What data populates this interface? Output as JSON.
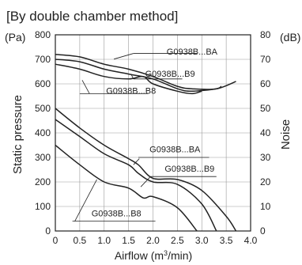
{
  "chart_data": {
    "type": "line",
    "title": "[By double chamber method]",
    "xlabel": "Airflow (m³/min)",
    "ylabel_left": "Static pressure",
    "ylabel_right": "Noise",
    "unit_left": "(Pa)",
    "unit_right": "(dB)",
    "xlim": [
      0,
      4.0
    ],
    "ylim_left": [
      0,
      800
    ],
    "ylim_right": [
      0,
      80
    ],
    "x_ticks": [
      "0",
      "0.5",
      "1.0",
      "1.5",
      "2.0",
      "2.5",
      "3.0",
      "3.5",
      "4.0"
    ],
    "y_ticks_left": [
      "0",
      "100",
      "200",
      "300",
      "400",
      "500",
      "600",
      "700",
      "800"
    ],
    "y_ticks_right": [
      "0",
      "10",
      "20",
      "30",
      "40",
      "50",
      "60",
      "70",
      "80"
    ],
    "grid": true,
    "pressure_series": [
      {
        "name": "G0938B...BA",
        "x": [
          0,
          0.5,
          1.0,
          1.5,
          1.7,
          2.0,
          2.5,
          3.0,
          3.5,
          3.7
        ],
        "y": [
          500,
          420,
          350,
          295,
          270,
          215,
          210,
          165,
          60,
          0
        ]
      },
      {
        "name": "G0938B...B9",
        "x": [
          0,
          0.5,
          1.0,
          1.5,
          1.7,
          2.0,
          2.5,
          3.0,
          3.3
        ],
        "y": [
          455,
          385,
          315,
          270,
          235,
          200,
          190,
          110,
          0
        ]
      },
      {
        "name": "G0938B...B8",
        "x": [
          0,
          0.5,
          1.0,
          1.5,
          1.8,
          2.0,
          2.5,
          2.9
        ],
        "y": [
          350,
          270,
          200,
          175,
          135,
          140,
          95,
          0
        ]
      }
    ],
    "noise_series": [
      {
        "name": "G0938B...BA",
        "x": [
          0,
          0.5,
          1.0,
          1.5,
          2.0,
          2.5,
          2.8,
          3.3,
          3.7
        ],
        "y": [
          72,
          71,
          68,
          66,
          63,
          59,
          58,
          58,
          61
        ]
      },
      {
        "name": "G0938B...B9",
        "x": [
          0,
          0.5,
          1.0,
          1.5,
          2.0,
          2.5,
          2.8,
          3.3,
          3.4
        ],
        "y": [
          70,
          69,
          66,
          64,
          62,
          58,
          57,
          58,
          59
        ]
      },
      {
        "name": "G0938B...B8",
        "x": [
          0,
          0.5,
          1.0,
          1.5,
          1.8,
          2.0,
          2.5,
          2.8,
          3.0
        ],
        "y": [
          68,
          66,
          63,
          62,
          63,
          60,
          57,
          56,
          57
        ]
      }
    ],
    "annotations": [
      {
        "text": "G0938B...BA",
        "target": "noise_BA"
      },
      {
        "text": "G0938B...B9",
        "target": "noise_B9"
      },
      {
        "text": "G0938B...B8",
        "target": "noise_B8"
      },
      {
        "text": "G0938B...BA",
        "target": "pressure_BA"
      },
      {
        "text": "G0938B...B9",
        "target": "pressure_B9"
      },
      {
        "text": "G0938B...B8",
        "target": "pressure_B8"
      }
    ],
    "colors": {
      "line": "#222222",
      "grid": "#999999",
      "frame": "#222222",
      "background": "#ffffff"
    }
  }
}
